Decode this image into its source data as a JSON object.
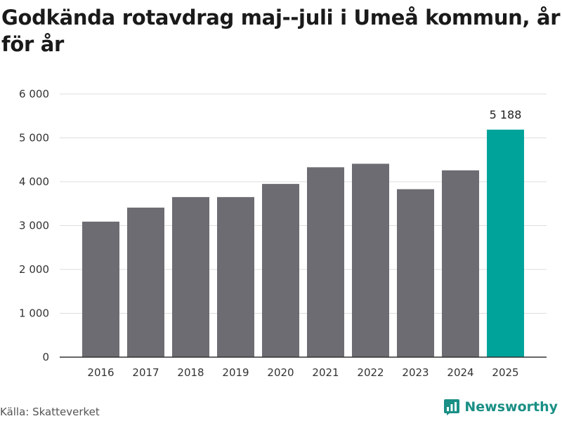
{
  "title": "Godkända rotavdrag maj--juli i Umeå kommun, år för år",
  "source": "Källa: Skatteverket",
  "brand": {
    "name": "Newsworthy",
    "icon": "newsworthy-logo-icon"
  },
  "colors": {
    "bar": "#6d6c72",
    "highlight": "#00a39a",
    "grid": "#dddddd",
    "axis": "#333333",
    "brand": "#1a8f86"
  },
  "chart_data": {
    "type": "bar",
    "title": "Godkända rotavdrag maj--juli i Umeå kommun, år för år",
    "xlabel": "",
    "ylabel": "",
    "categories": [
      "2016",
      "2017",
      "2018",
      "2019",
      "2020",
      "2021",
      "2022",
      "2023",
      "2024",
      "2025"
    ],
    "values": [
      3090,
      3410,
      3650,
      3650,
      3950,
      4330,
      4410,
      3830,
      4260,
      5188
    ],
    "highlight_index": 9,
    "data_labels": [
      {
        "index": 9,
        "text": "5 188"
      }
    ],
    "ylim": [
      0,
      6000
    ],
    "yticks": [
      0,
      1000,
      2000,
      3000,
      4000,
      5000,
      6000
    ],
    "ytick_labels": [
      "0",
      "1 000",
      "2 000",
      "3 000",
      "4 000",
      "5 000",
      "6 000"
    ],
    "grid": true,
    "legend": "none"
  }
}
